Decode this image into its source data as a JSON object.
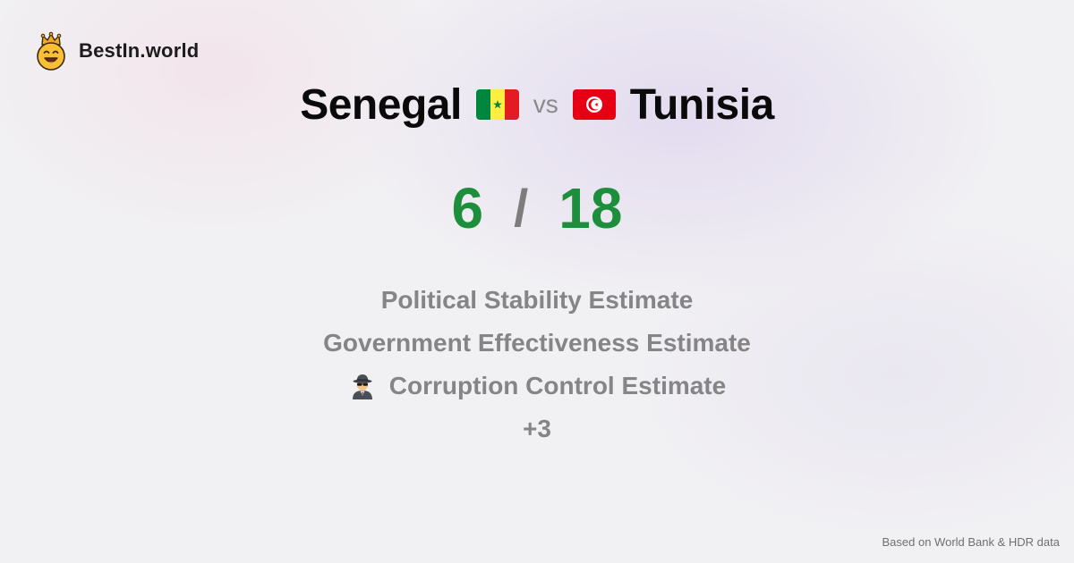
{
  "brand": {
    "name": "BestIn.world",
    "logo_icon": "crowned-smiley-icon"
  },
  "comparison": {
    "left_country": "Senegal",
    "left_flag": "senegal-flag-icon",
    "vs_label": "vs",
    "right_country": "Tunisia",
    "right_flag": "tunisia-flag-icon"
  },
  "score": {
    "left": "6",
    "separator": "/",
    "right": "18",
    "color": "#1d8e3c"
  },
  "metrics": [
    {
      "label": "Political Stability Estimate"
    },
    {
      "label": "Government Effectiveness Estimate"
    },
    {
      "label": "Corruption Control Estimate",
      "icon": "spy-detective-icon"
    }
  ],
  "more_label": "+3",
  "footer": {
    "source": "Based on World Bank & HDR data"
  }
}
